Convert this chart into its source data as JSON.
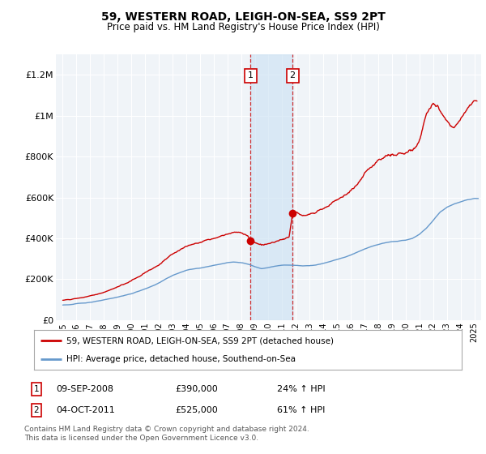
{
  "title": "59, WESTERN ROAD, LEIGH-ON-SEA, SS9 2PT",
  "subtitle": "Price paid vs. HM Land Registry's House Price Index (HPI)",
  "legend_line1": "59, WESTERN ROAD, LEIGH-ON-SEA, SS9 2PT (detached house)",
  "legend_line2": "HPI: Average price, detached house, Southend-on-Sea",
  "footnote": "Contains HM Land Registry data © Crown copyright and database right 2024.\nThis data is licensed under the Open Government Licence v3.0.",
  "transaction1_date": "09-SEP-2008",
  "transaction1_price": "£390,000",
  "transaction1_hpi": "24% ↑ HPI",
  "transaction2_date": "04-OCT-2011",
  "transaction2_price": "£525,000",
  "transaction2_hpi": "61% ↑ HPI",
  "sale1_year": 2008.69,
  "sale1_price": 390000,
  "sale2_year": 2011.75,
  "sale2_price": 525000,
  "vline1_x": 2008.69,
  "vline2_x": 2011.75,
  "shaded_region": [
    2008.69,
    2011.75
  ],
  "ylim": [
    0,
    1300000
  ],
  "xlim": [
    1994.5,
    2025.5
  ],
  "yticks": [
    0,
    200000,
    400000,
    600000,
    800000,
    1000000,
    1200000
  ],
  "ytick_labels": [
    "£0",
    "£200K",
    "£400K",
    "£600K",
    "£800K",
    "£1M",
    "£1.2M"
  ],
  "color_property": "#cc0000",
  "color_hpi": "#6699cc",
  "background_plot": "#f0f4f8",
  "background_fig": "#ffffff",
  "hpi_years": [
    1995,
    1995.5,
    1996,
    1996.5,
    1997,
    1997.5,
    1998,
    1998.5,
    1999,
    1999.5,
    2000,
    2000.5,
    2001,
    2001.5,
    2002,
    2002.5,
    2003,
    2003.5,
    2004,
    2004.5,
    2005,
    2005.5,
    2006,
    2006.5,
    2007,
    2007.5,
    2008,
    2008.5,
    2009,
    2009.5,
    2010,
    2010.5,
    2011,
    2011.5,
    2012,
    2012.5,
    2013,
    2013.5,
    2014,
    2014.5,
    2015,
    2015.5,
    2016,
    2016.5,
    2017,
    2017.5,
    2018,
    2018.5,
    2019,
    2019.5,
    2020,
    2020.5,
    2021,
    2021.5,
    2022,
    2022.5,
    2023,
    2023.5,
    2024,
    2024.5,
    2025
  ],
  "hpi_vals": [
    72000,
    74000,
    78000,
    81000,
    86000,
    91000,
    96000,
    102000,
    110000,
    118000,
    126000,
    138000,
    150000,
    163000,
    178000,
    197000,
    215000,
    228000,
    240000,
    247000,
    252000,
    258000,
    265000,
    272000,
    280000,
    283000,
    280000,
    272000,
    260000,
    252000,
    258000,
    264000,
    268000,
    270000,
    268000,
    266000,
    268000,
    272000,
    280000,
    290000,
    300000,
    310000,
    322000,
    338000,
    352000,
    364000,
    374000,
    382000,
    386000,
    390000,
    394000,
    402000,
    422000,
    452000,
    490000,
    530000,
    555000,
    570000,
    580000,
    590000,
    595000
  ],
  "red_years": [
    1995,
    1995.5,
    1996,
    1996.5,
    1997,
    1997.5,
    1998,
    1998.5,
    1999,
    1999.5,
    2000,
    2000.5,
    2001,
    2001.5,
    2002,
    2002.5,
    2003,
    2003.5,
    2004,
    2004.5,
    2005,
    2005.5,
    2006,
    2006.5,
    2007,
    2007.5,
    2008,
    2008.25,
    2008.5,
    2008.69,
    2008.69,
    2009,
    2009.5,
    2010,
    2010.5,
    2011,
    2011.5,
    2011.75,
    2011.75,
    2012,
    2012.5,
    2013,
    2013.5,
    2014,
    2014.5,
    2015,
    2015.5,
    2016,
    2016.5,
    2017,
    2017.5,
    2018,
    2018.5,
    2019,
    2019.5,
    2020,
    2020.5,
    2021,
    2021.25,
    2021.5,
    2021.75,
    2022,
    2022.25,
    2022.5,
    2022.75,
    2023,
    2023.25,
    2023.5,
    2023.75,
    2024,
    2024.25,
    2024.5,
    2024.75,
    2025
  ],
  "red_vals": [
    100000,
    103000,
    107000,
    112000,
    120000,
    128000,
    138000,
    148000,
    162000,
    174000,
    188000,
    206000,
    226000,
    244000,
    266000,
    295000,
    325000,
    346000,
    365000,
    375000,
    380000,
    388000,
    398000,
    408000,
    418000,
    425000,
    420000,
    415000,
    408000,
    390000,
    390000,
    375000,
    360000,
    368000,
    380000,
    395000,
    408000,
    525000,
    525000,
    535000,
    520000,
    525000,
    535000,
    548000,
    565000,
    580000,
    600000,
    625000,
    660000,
    700000,
    730000,
    760000,
    785000,
    800000,
    810000,
    820000,
    840000,
    880000,
    950000,
    1020000,
    1060000,
    1080000,
    1060000,
    1040000,
    1020000,
    1000000,
    980000,
    970000,
    990000,
    1010000,
    1040000,
    1060000,
    1080000,
    1100000
  ]
}
